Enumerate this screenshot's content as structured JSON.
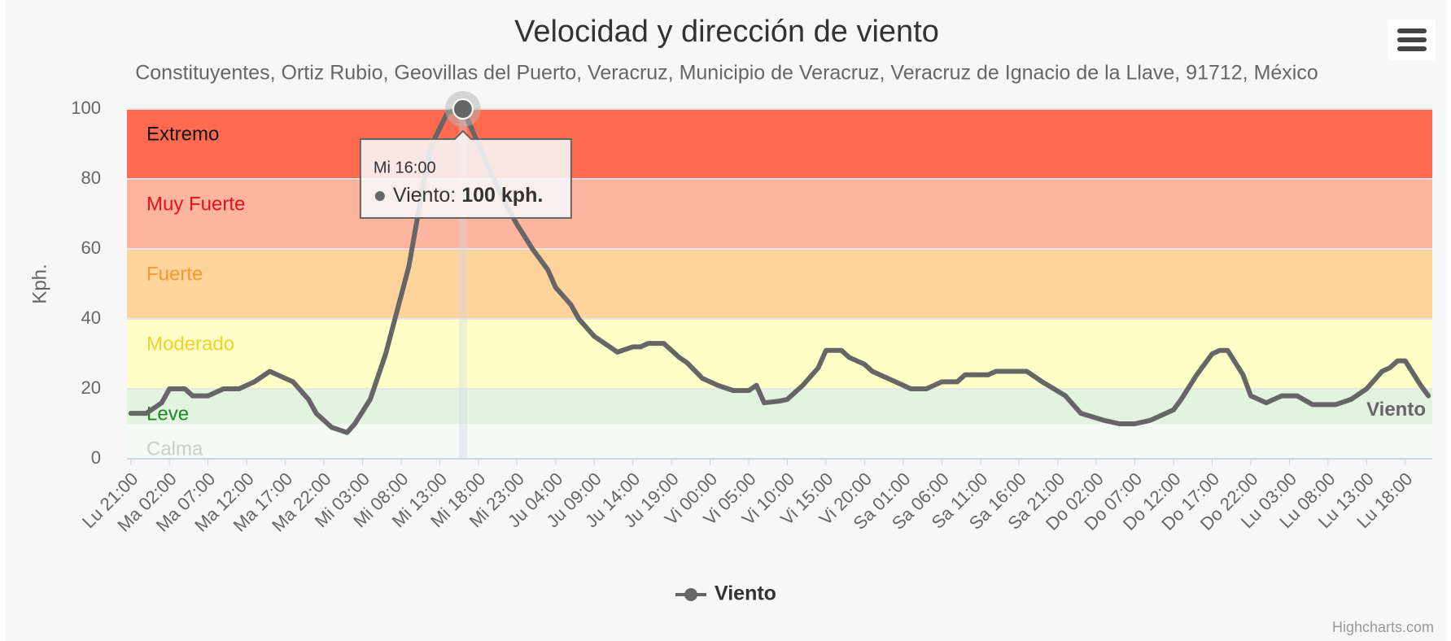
{
  "chart_data": {
    "type": "line",
    "title": "Velocidad y dirección de viento",
    "subtitle": "Constituyentes, Ortiz Rubio, Geovillas del Puerto, Veracruz, Municipio de Veracruz, Veracruz de Ignacio de la Llave, 91712, México",
    "y_axis_label": "Kph.",
    "xlim": [
      -0.5,
      168.5
    ],
    "xticks": [
      {
        "value": 0,
        "label": "Lu 21:00"
      },
      {
        "value": 5,
        "label": "Ma 02:00"
      },
      {
        "value": 10,
        "label": "Ma 07:00"
      },
      {
        "value": 15,
        "label": "Ma 12:00"
      },
      {
        "value": 20,
        "label": "Ma 17:00"
      },
      {
        "value": 25,
        "label": "Ma 22:00"
      },
      {
        "value": 30,
        "label": "Mi 03:00"
      },
      {
        "value": 35,
        "label": "Mi 08:00"
      },
      {
        "value": 40,
        "label": "Mi 13:00"
      },
      {
        "value": 45,
        "label": "Mi 18:00"
      },
      {
        "value": 50,
        "label": "Mi 23:00"
      },
      {
        "value": 55,
        "label": "Ju 04:00"
      },
      {
        "value": 60,
        "label": "Ju 09:00"
      },
      {
        "value": 65,
        "label": "Ju 14:00"
      },
      {
        "value": 70,
        "label": "Ju 19:00"
      },
      {
        "value": 75,
        "label": "Vi 00:00"
      },
      {
        "value": 80,
        "label": "Vi 05:00"
      },
      {
        "value": 85,
        "label": "Vi 10:00"
      },
      {
        "value": 90,
        "label": "Vi 15:00"
      },
      {
        "value": 95,
        "label": "Vi 20:00"
      },
      {
        "value": 100,
        "label": "Sa 01:00"
      },
      {
        "value": 105,
        "label": "Sa 06:00"
      },
      {
        "value": 110,
        "label": "Sa 11:00"
      },
      {
        "value": 115,
        "label": "Sa 16:00"
      },
      {
        "value": 120,
        "label": "Sa 21:00"
      },
      {
        "value": 125,
        "label": "Do 02:00"
      },
      {
        "value": 130,
        "label": "Do 07:00"
      },
      {
        "value": 135,
        "label": "Do 12:00"
      },
      {
        "value": 140,
        "label": "Do 17:00"
      },
      {
        "value": 145,
        "label": "Do 22:00"
      },
      {
        "value": 150,
        "label": "Lu 03:00"
      },
      {
        "value": 155,
        "label": "Lu 08:00"
      },
      {
        "value": 160,
        "label": "Lu 13:00"
      },
      {
        "value": 165,
        "label": "Lu 18:00"
      }
    ],
    "ylim": [
      0,
      100
    ],
    "yticks": [
      0,
      20,
      40,
      60,
      80,
      100
    ],
    "bands": [
      {
        "label": "Calma",
        "from": 0,
        "to": 10,
        "color": "#f4faf4",
        "label_color": "#cccccc"
      },
      {
        "label": "Leve",
        "from": 10,
        "to": 20,
        "color": "#e2f3e0",
        "label_color": "#1a8a1a"
      },
      {
        "label": "Moderado",
        "from": 20,
        "to": 40,
        "color": "#ffffc8",
        "label_color": "#f2d02e"
      },
      {
        "label": "Fuerte",
        "from": 40,
        "to": 60,
        "color": "#ffd39c",
        "label_color": "#f59a2c"
      },
      {
        "label": "Muy Fuerte",
        "from": 60,
        "to": 80,
        "color": "#ffb4a0",
        "label_color": "#e8121e"
      },
      {
        "label": "Extremo",
        "from": 80,
        "to": 100,
        "color": "#ff6a50",
        "label_color": "#111111"
      }
    ],
    "x": [
      0,
      2,
      4,
      5,
      7,
      8,
      10,
      12,
      14,
      16,
      18,
      19,
      21,
      23,
      24,
      26,
      28,
      29,
      31,
      33,
      36,
      38,
      39,
      41,
      43,
      45,
      48,
      50,
      52,
      54,
      55,
      57,
      58,
      60,
      62,
      63,
      65,
      66,
      67,
      69,
      71,
      72,
      74,
      76,
      78,
      80,
      81,
      82,
      84,
      85,
      87,
      89,
      90,
      92,
      93,
      95,
      96,
      98,
      99,
      101,
      103,
      105,
      107,
      108,
      111,
      112,
      116,
      118,
      121,
      123,
      126,
      128,
      130,
      132,
      135,
      136,
      138,
      140,
      141,
      142,
      144,
      145,
      147,
      149,
      151,
      153,
      156,
      158,
      160,
      162,
      163,
      164,
      165,
      167,
      168
    ],
    "series": [
      {
        "name": "Viento",
        "color": "#666666",
        "values": [
          13,
          13,
          16,
          20,
          20,
          18,
          18,
          20,
          20,
          22,
          25,
          24,
          22,
          17,
          13,
          9,
          7.5,
          10,
          17,
          30,
          55,
          80,
          90,
          99,
          100,
          90,
          75,
          67,
          60,
          54,
          49,
          44,
          40,
          35,
          32,
          30.5,
          32,
          32,
          33,
          33,
          29,
          27.5,
          23,
          21,
          19.5,
          19.5,
          21,
          16,
          16.5,
          17,
          21,
          26,
          31,
          31,
          29,
          27,
          25,
          23,
          22,
          20,
          20,
          22,
          22,
          24,
          24,
          25,
          25,
          22,
          18,
          13,
          11,
          10,
          10,
          11,
          14,
          17,
          24,
          30,
          31,
          31,
          24,
          18,
          16,
          18,
          18,
          15.5,
          15.5,
          17,
          20,
          25,
          26,
          28,
          28,
          21,
          18
        ]
      }
    ],
    "tooltip": {
      "x": 43,
      "header": "Mi 16:00",
      "label": "Viento:",
      "value": 100,
      "value_label": "100 kph."
    },
    "credits": "Highcharts.com"
  }
}
